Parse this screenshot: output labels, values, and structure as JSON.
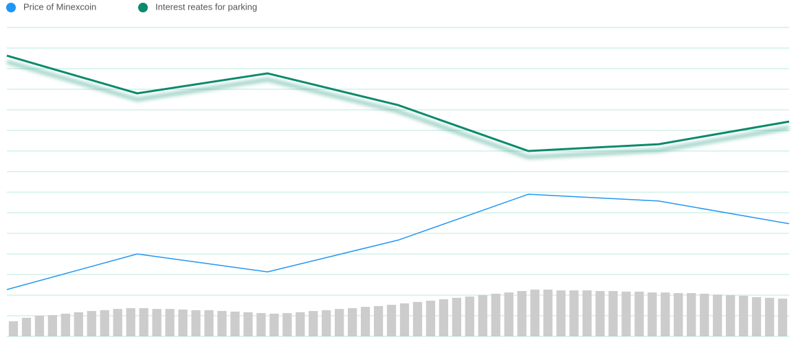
{
  "chart_data": {
    "type": "line",
    "series": [
      {
        "name": "Price of Minexcoin",
        "color": "#2196f3",
        "values": [
          2.27,
          4.0,
          3.13,
          4.67,
          6.9,
          6.57,
          5.47
        ]
      },
      {
        "name": "Interest reates for parking",
        "color": "#0b8a6c",
        "values": [
          13.63,
          11.8,
          12.77,
          11.23,
          9.0,
          9.33,
          10.43
        ]
      }
    ],
    "bars": {
      "color": "#cccccc",
      "values": [
        0.73,
        0.9,
        1.0,
        1.03,
        1.1,
        1.17,
        1.23,
        1.27,
        1.33,
        1.37,
        1.37,
        1.33,
        1.33,
        1.3,
        1.27,
        1.27,
        1.23,
        1.2,
        1.17,
        1.13,
        1.1,
        1.13,
        1.17,
        1.23,
        1.27,
        1.33,
        1.37,
        1.43,
        1.47,
        1.53,
        1.6,
        1.67,
        1.73,
        1.8,
        1.87,
        1.93,
        2.0,
        2.07,
        2.13,
        2.2,
        2.27,
        2.27,
        2.23,
        2.23,
        2.23,
        2.2,
        2.2,
        2.17,
        2.17,
        2.13,
        2.13,
        2.1,
        2.1,
        2.07,
        2.03,
        2.0,
        1.97,
        1.9,
        1.87,
        1.83
      ]
    },
    "ylim": [
      0,
      15
    ],
    "yticks": [
      0,
      1,
      2,
      3,
      4,
      5,
      6,
      7,
      8,
      9,
      10,
      11,
      12,
      13,
      14,
      15
    ],
    "grid": true,
    "grid_color": "#b9e8de"
  }
}
